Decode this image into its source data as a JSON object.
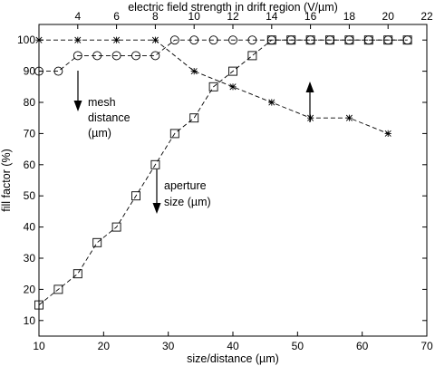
{
  "chart_data": {
    "type": "line",
    "xlabel": "size/distance (µm)",
    "ylabel": "fill factor (%)",
    "x2label": "electric field strength in drift region (V/µm)",
    "xlim": [
      10,
      70
    ],
    "ylim": [
      5,
      105
    ],
    "x2lim": [
      2,
      22
    ],
    "xticks": [
      10,
      20,
      30,
      40,
      50,
      60,
      70
    ],
    "yticks": [
      10,
      20,
      30,
      40,
      50,
      60,
      70,
      80,
      90,
      100
    ],
    "x2ticks": [
      4,
      6,
      8,
      10,
      12,
      14,
      16,
      18,
      20,
      22
    ],
    "grid": false,
    "series": [
      {
        "marker": "circle",
        "x": [
          10,
          13,
          16,
          19,
          22,
          25,
          28,
          31,
          34,
          37,
          40,
          43,
          46,
          49,
          52,
          55,
          58,
          61,
          64,
          67
        ],
        "values": [
          90,
          90,
          95,
          95,
          95,
          95,
          95,
          100,
          100,
          100,
          100,
          100,
          100,
          100,
          100,
          100,
          100,
          100,
          100,
          100
        ]
      },
      {
        "marker": "square",
        "x": [
          10,
          13,
          16,
          19,
          22,
          25,
          28,
          31,
          34,
          37,
          40,
          43,
          46,
          49,
          52,
          55,
          58,
          61,
          64,
          67
        ],
        "values": [
          15,
          20,
          25,
          35,
          40,
          50,
          60,
          70,
          75,
          85,
          90,
          95,
          100,
          100,
          100,
          100,
          100,
          100,
          100,
          100
        ]
      },
      {
        "marker": "star",
        "x2": [
          2,
          4,
          6,
          8,
          10,
          12,
          14,
          16,
          18,
          20
        ],
        "values": [
          100,
          100,
          100,
          100,
          90,
          85,
          80,
          75,
          75,
          70
        ]
      }
    ],
    "annotations": [
      {
        "lines": [
          "mesh",
          "distance",
          "(µm)"
        ],
        "arrow": "down"
      },
      {
        "lines": [
          "aperture",
          "size (µm)"
        ],
        "arrow": "down"
      },
      {
        "arrow": "up"
      }
    ]
  }
}
